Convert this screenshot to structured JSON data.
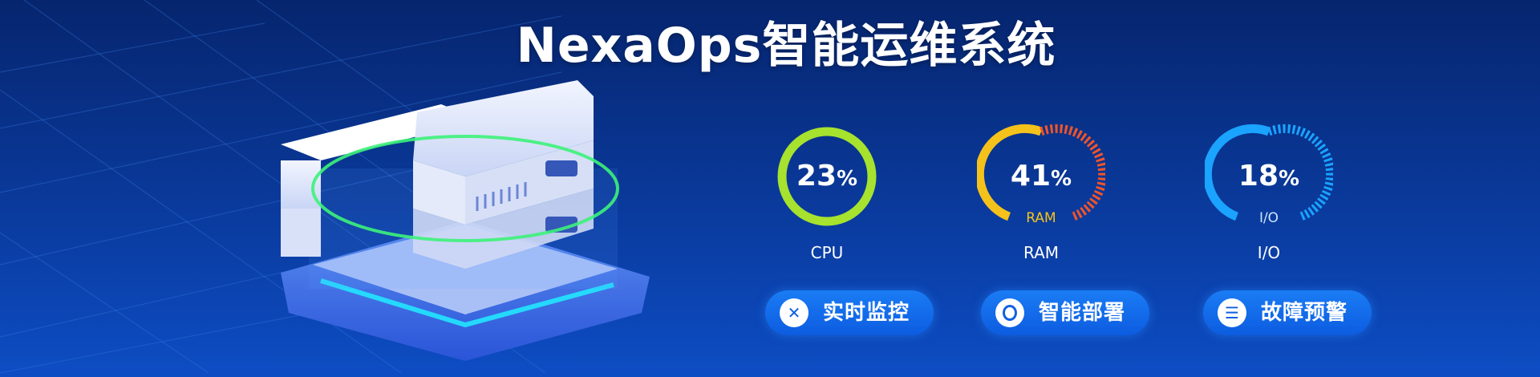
{
  "header": {
    "title": "NexaOps智能运维系统"
  },
  "gauges": [
    {
      "id": "cpu",
      "value": "23",
      "unit": "%",
      "label": "CPU",
      "inner_label": "",
      "percent": 23,
      "color": "#a6e22e"
    },
    {
      "id": "ram",
      "value": "41",
      "unit": "%",
      "label": "RAM",
      "inner_label": "RAM",
      "percent": 41,
      "color": "#f5c21b",
      "color2": "#f0542b"
    },
    {
      "id": "io",
      "value": "18",
      "unit": "%",
      "label": "I/O",
      "inner_label": "I/O",
      "percent": 18,
      "color": "#1aa3ff"
    }
  ],
  "buttons": [
    {
      "label": "实时监控",
      "icon": "close-x-icon"
    },
    {
      "label": "智能部署",
      "icon": "bulb-icon"
    },
    {
      "label": "故障预警",
      "icon": "list-icon"
    }
  ]
}
